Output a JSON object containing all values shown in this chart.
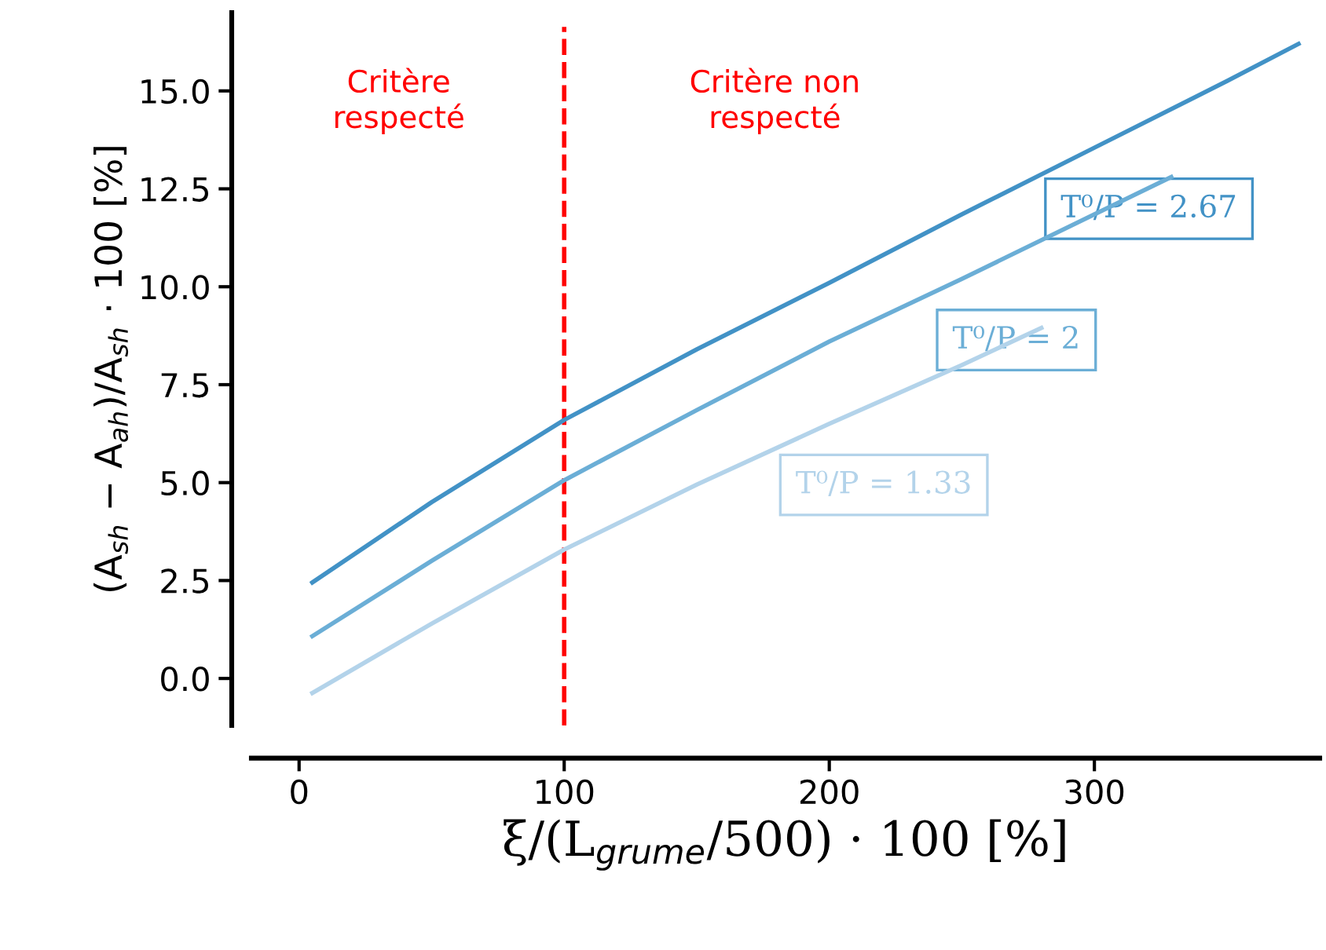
{
  "chart_data": {
    "type": "line",
    "xlabel": "ξ/(L$_{grume}$/500) · 100 [%]",
    "ylabel": "(A$_{sh}$ − A$_{ah}$)/A$_{sh}$ · 100 [%]",
    "xlim": [
      -18,
      385
    ],
    "xticks": [
      0,
      100,
      200,
      300
    ],
    "ylim": [
      -1.2,
      17.0
    ],
    "yticks": [
      {
        "value": 0,
        "label": "0.0"
      },
      2.5,
      {
        "value": 5,
        "label": "5.0"
      },
      7.5,
      {
        "value": 10,
        "label": "10.0"
      },
      12.5,
      {
        "value": 15,
        "label": "15.0"
      }
    ],
    "grid": false,
    "legend": false,
    "series": [
      {
        "name": "T⁰/P = 2.67",
        "color": "#4292c6",
        "x": [
          5,
          50,
          100,
          150,
          200,
          250,
          300,
          350,
          377
        ],
        "values": [
          2.45,
          4.5,
          6.6,
          8.4,
          10.1,
          11.85,
          13.55,
          15.25,
          16.2
        ]
      },
      {
        "name": "T⁰/P = 2",
        "color": "#6baed6",
        "x": [
          5,
          50,
          100,
          150,
          200,
          250,
          300,
          329
        ],
        "values": [
          1.08,
          3.0,
          5.06,
          6.85,
          8.6,
          10.2,
          11.85,
          12.8
        ]
      },
      {
        "name": "T⁰/P = 1.33",
        "color": "#b3d3ea",
        "x": [
          5,
          50,
          100,
          150,
          200,
          250,
          280
        ],
        "values": [
          -0.37,
          1.4,
          3.29,
          4.95,
          6.5,
          8.0,
          8.95
        ]
      }
    ],
    "ref_lines": [
      {
        "axis": "x",
        "value": 100,
        "color": "#ff0000",
        "line_style": "dashed"
      }
    ],
    "annotations": [
      "Critère\nrespecté",
      "Critère non\nrespecté"
    ]
  }
}
